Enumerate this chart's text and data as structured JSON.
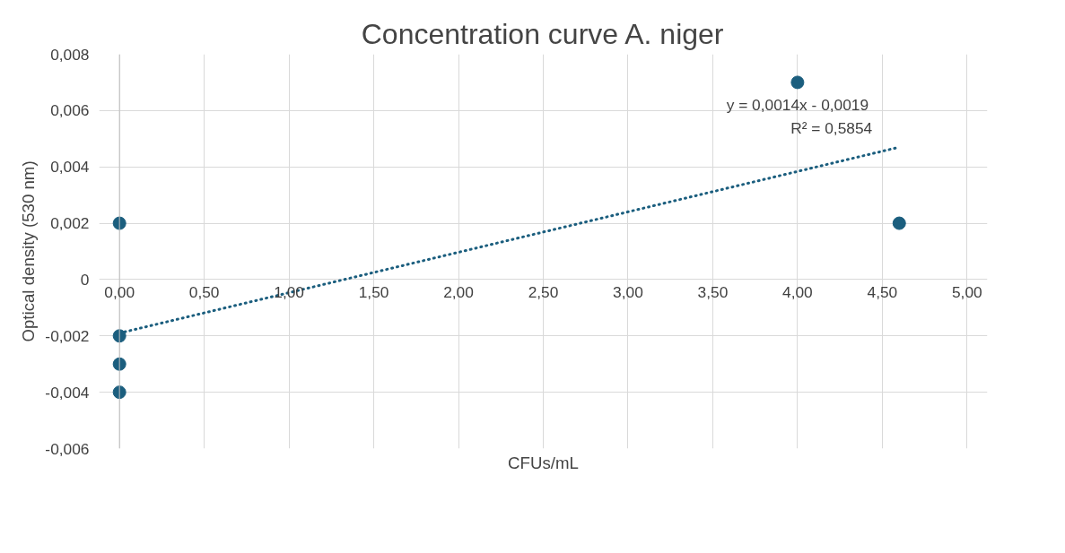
{
  "chart_data": {
    "type": "scatter",
    "title": "Concentration curve A. niger",
    "xlabel": "CFUs/mL",
    "ylabel": "Optical density (530 nm)",
    "xlim": [
      0,
      5
    ],
    "ylim": [
      -0.006,
      0.008
    ],
    "xticks": [
      {
        "value": 0,
        "label": "0,00"
      },
      {
        "value": 0.5,
        "label": "0,50"
      },
      {
        "value": 1,
        "label": "1,00"
      },
      {
        "value": 1.5,
        "label": "1,50"
      },
      {
        "value": 2,
        "label": "2,00"
      },
      {
        "value": 2.5,
        "label": "2,50"
      },
      {
        "value": 3,
        "label": "3,00"
      },
      {
        "value": 3.5,
        "label": "3,50"
      },
      {
        "value": 4,
        "label": "4,00"
      },
      {
        "value": 4.5,
        "label": "4,50"
      },
      {
        "value": 5,
        "label": "5,00"
      }
    ],
    "yticks": [
      {
        "value": -0.006,
        "label": "-0,006"
      },
      {
        "value": -0.004,
        "label": "-0,004"
      },
      {
        "value": -0.002,
        "label": "-0,002"
      },
      0,
      {
        "value": 0.002,
        "label": "0,002"
      },
      {
        "value": 0.004,
        "label": "0,004"
      },
      {
        "value": 0.006,
        "label": "0,006"
      },
      {
        "value": 0.008,
        "label": "0,008"
      }
    ],
    "grid": true,
    "marker": "circle",
    "series": [
      {
        "type": "scatter",
        "color": "#1b5e7e",
        "x": [
          0,
          0,
          0,
          0,
          4.0,
          4.6
        ],
        "values": [
          0.002,
          -0.002,
          -0.003,
          -0.004,
          0.007,
          0.002
        ]
      },
      {
        "type": "line",
        "color": "#1b5e7e",
        "line_style": "dotted",
        "marker": "none",
        "x": [
          0,
          4.6
        ],
        "values": [
          -0.0019,
          0.0047
        ]
      }
    ],
    "annotations": [
      "y = 0,0014x - 0,0019",
      "R² = 0,5854"
    ]
  }
}
